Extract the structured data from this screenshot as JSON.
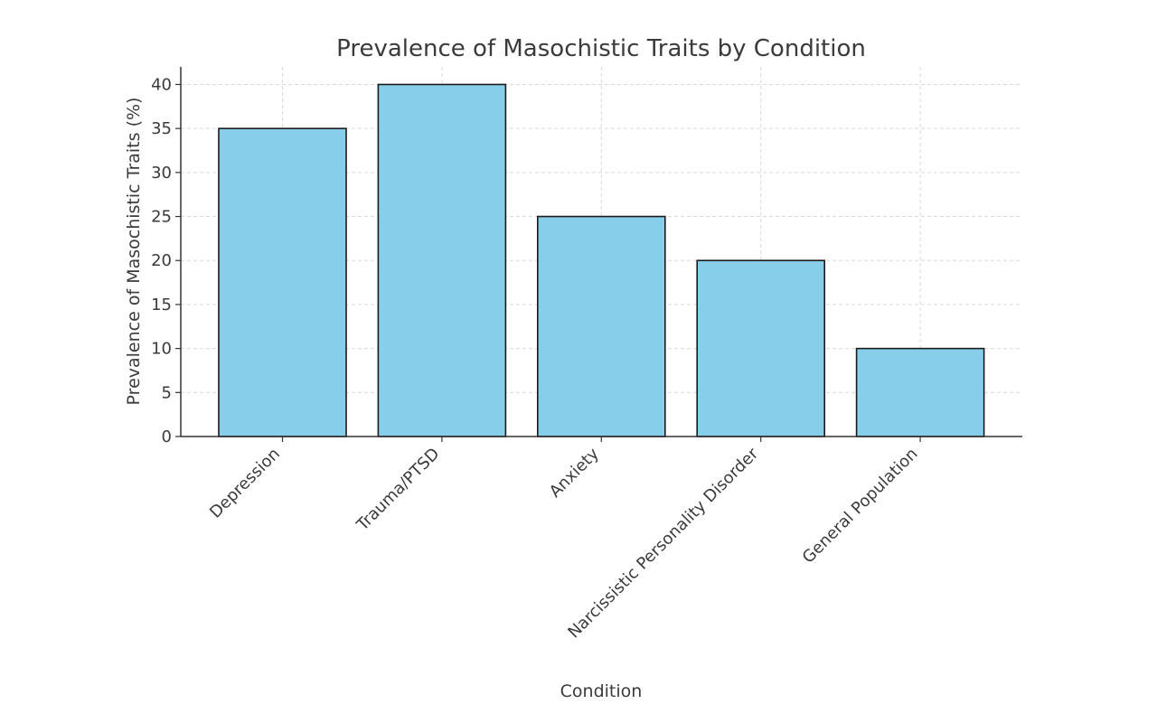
{
  "chart_data": {
    "type": "bar",
    "title": "Prevalence of Masochistic Traits by Condition",
    "xlabel": "Condition",
    "ylabel": "Prevalence of Masochistic Traits (%)",
    "categories": [
      "Depression",
      "Trauma/PTSD",
      "Anxiety",
      "Narcissistic Personality Disorder",
      "General Population"
    ],
    "values": [
      35,
      40,
      25,
      20,
      10
    ],
    "ylim": [
      0,
      42
    ],
    "yticks": [
      0,
      5,
      10,
      15,
      20,
      25,
      30,
      35,
      40
    ],
    "grid": true,
    "bar_color": "#87ceeb",
    "edge_color": "#1a1a1a"
  }
}
